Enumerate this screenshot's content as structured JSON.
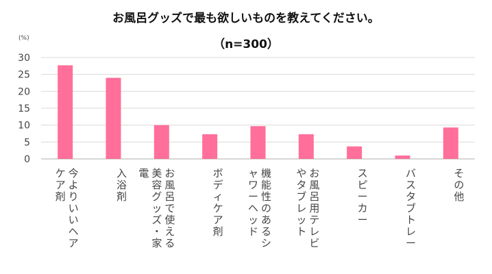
{
  "title": "お風呂グッズで最も欲しいものを教えてください。",
  "subtitle": "（n=300）",
  "unit": "(%)",
  "colors": {
    "bar": "#FF6F9A",
    "grid": "#D9D9D9",
    "axis": "#BFBFBF",
    "text": "#444444"
  },
  "chart_data": {
    "type": "bar",
    "title": "お風呂グッズで最も欲しいものを教えてください。",
    "subtitle": "（n=300）",
    "ylabel": "(%)",
    "ylim": [
      0,
      30
    ],
    "yticks": [
      0,
      5,
      10,
      15,
      20,
      25,
      30
    ],
    "grid": true,
    "categories": [
      "今よりいいヘアケア剤",
      "入浴剤",
      "お風呂で使える美容グッズ・家電",
      "ボディケア剤",
      "機能性のあるシャワーヘッド",
      "お風呂用テレビやタブレット",
      "スピーカー",
      "バスタブトレー",
      "その他"
    ],
    "values": [
      27.7,
      24.0,
      10.0,
      7.3,
      9.7,
      7.3,
      3.7,
      1.0,
      9.3
    ]
  }
}
